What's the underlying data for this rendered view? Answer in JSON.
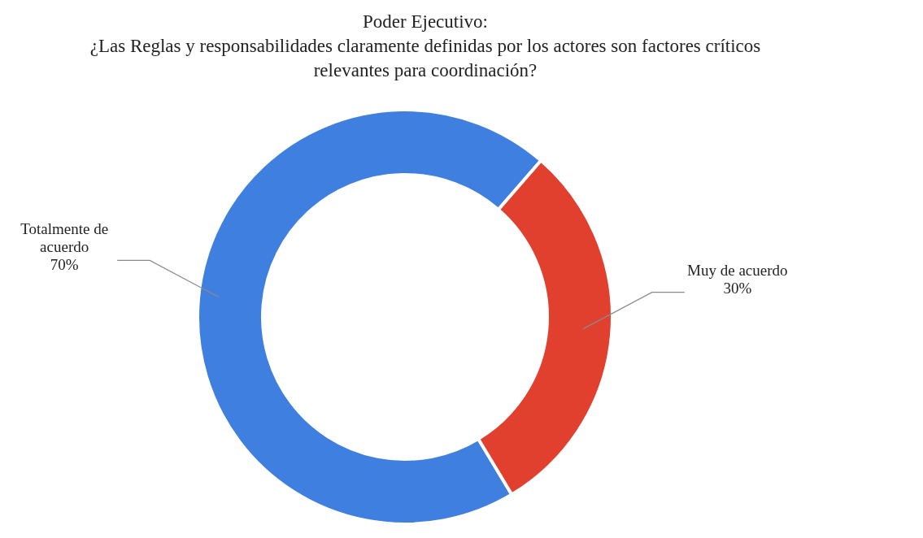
{
  "chart_data": {
    "type": "donut",
    "title": "Poder Ejecutivo:",
    "subtitle": "¿Las Reglas y responsabilidades claramente definidas por los actores son factores críticos relevantes para coordinación?",
    "categories": [
      "Totalmente de acuerdo",
      "Muy de acuerdo"
    ],
    "values": [
      70,
      30
    ],
    "colors": [
      "#3f7fe0",
      "#e2402f"
    ],
    "value_labels": [
      "70%",
      "30%"
    ],
    "legend": false
  }
}
